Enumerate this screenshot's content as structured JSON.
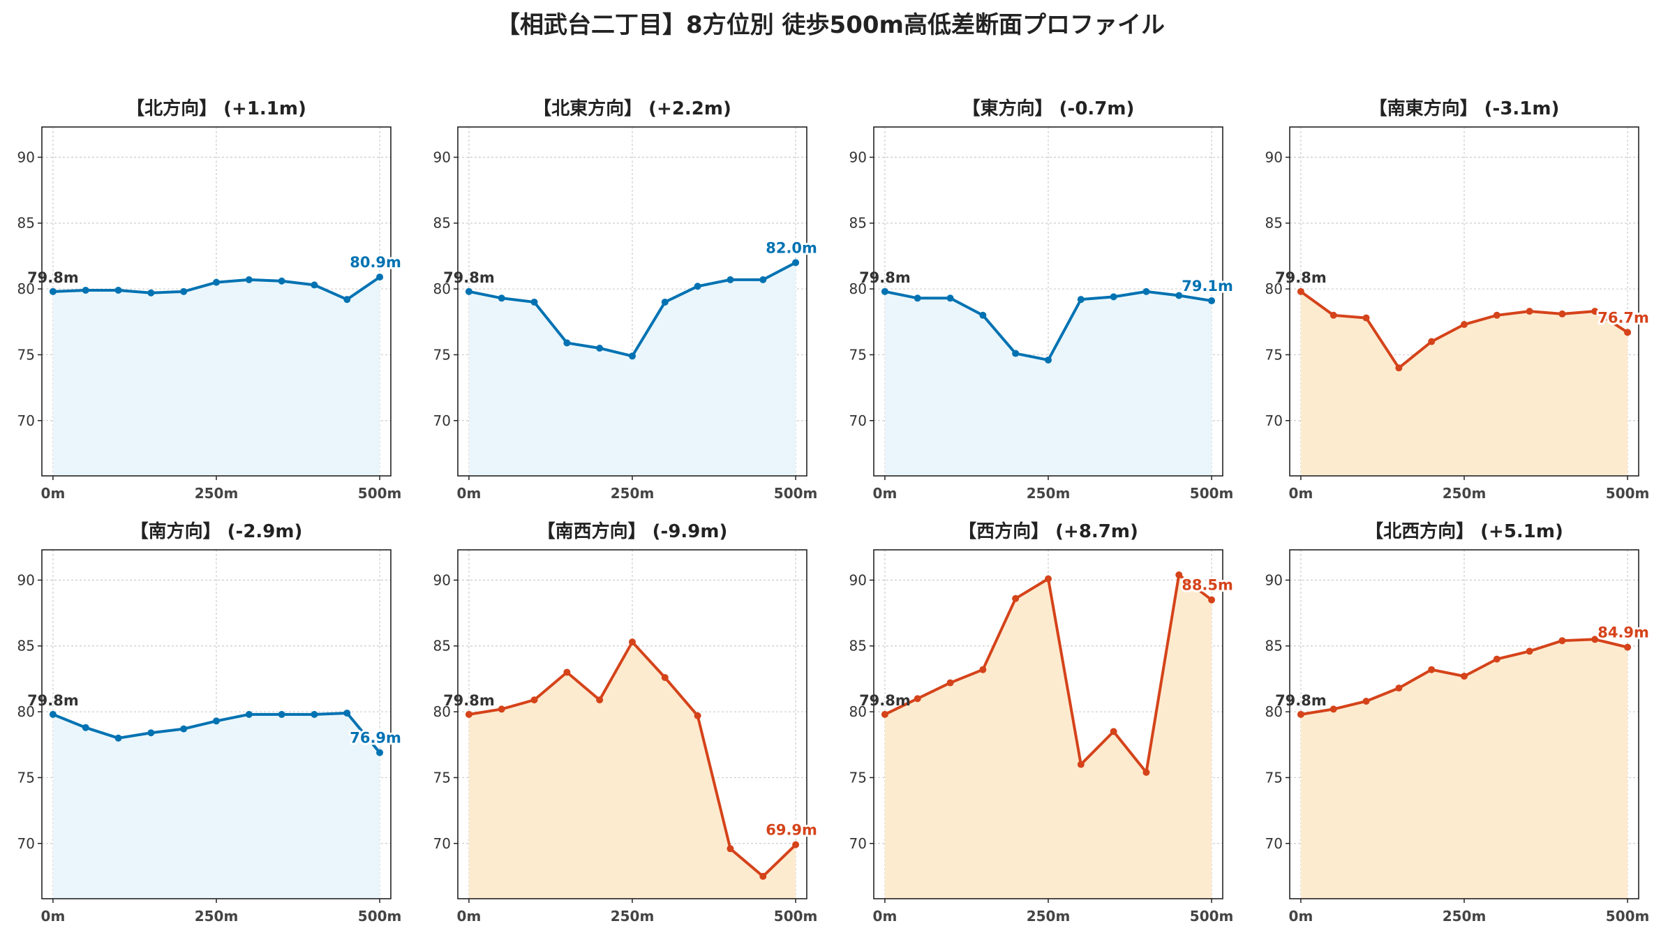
{
  "title": "【相武台二丁目】8方位別 徒歩500m高低差断面プロファイル",
  "colors": {
    "up": "#0072b2",
    "upFill": "#eaf6fb",
    "down": "#d5431a",
    "downFill": "#fdebd0",
    "grid": "#cccccc",
    "axis": "#222222"
  },
  "chart_data": [
    {
      "type": "line",
      "title": "【北方向】 (+1.1m)",
      "trend": "up",
      "x": [
        0,
        50,
        100,
        150,
        200,
        250,
        300,
        350,
        400,
        450,
        500
      ],
      "values": [
        79.8,
        79.9,
        79.9,
        79.7,
        79.8,
        80.5,
        80.7,
        80.6,
        80.3,
        79.2,
        80.9
      ],
      "start_label": "79.8m",
      "end_label": "80.9m",
      "xticks": [
        "0m",
        "250m",
        "500m"
      ],
      "xtick_values": [
        0,
        250,
        500
      ],
      "yticks": [
        "70",
        "75",
        "80",
        "85",
        "90"
      ],
      "ylim": [
        65.8,
        92.3
      ],
      "xlim": [
        -17,
        517
      ],
      "grid": true
    },
    {
      "type": "line",
      "title": "【北東方向】 (+2.2m)",
      "trend": "up",
      "x": [
        0,
        50,
        100,
        150,
        200,
        250,
        300,
        350,
        400,
        450,
        500
      ],
      "values": [
        79.8,
        79.3,
        79.0,
        75.9,
        75.5,
        74.9,
        79.0,
        80.2,
        80.7,
        80.7,
        82.0
      ],
      "start_label": "79.8m",
      "end_label": "82.0m",
      "xticks": [
        "0m",
        "250m",
        "500m"
      ],
      "xtick_values": [
        0,
        250,
        500
      ],
      "yticks": [
        "70",
        "75",
        "80",
        "85",
        "90"
      ],
      "ylim": [
        65.8,
        92.3
      ],
      "xlim": [
        -17,
        517
      ],
      "grid": true
    },
    {
      "type": "line",
      "title": "【東方向】 (-0.7m)",
      "trend": "up",
      "x": [
        0,
        50,
        100,
        150,
        200,
        250,
        300,
        350,
        400,
        450,
        500
      ],
      "values": [
        79.8,
        79.3,
        79.3,
        78.0,
        75.1,
        74.6,
        79.2,
        79.4,
        79.8,
        79.5,
        79.1
      ],
      "start_label": "79.8m",
      "end_label": "79.1m",
      "xticks": [
        "0m",
        "250m",
        "500m"
      ],
      "xtick_values": [
        0,
        250,
        500
      ],
      "yticks": [
        "70",
        "75",
        "80",
        "85",
        "90"
      ],
      "ylim": [
        65.8,
        92.3
      ],
      "xlim": [
        -17,
        517
      ],
      "grid": true
    },
    {
      "type": "line",
      "title": "【南東方向】 (-3.1m)",
      "trend": "down",
      "x": [
        0,
        50,
        100,
        150,
        200,
        250,
        300,
        350,
        400,
        450,
        500
      ],
      "values": [
        79.8,
        78.0,
        77.8,
        74.0,
        76.0,
        77.3,
        78.0,
        78.3,
        78.1,
        78.3,
        76.7
      ],
      "start_label": "79.8m",
      "end_label": "76.7m",
      "xticks": [
        "0m",
        "250m",
        "500m"
      ],
      "xtick_values": [
        0,
        250,
        500
      ],
      "yticks": [
        "70",
        "75",
        "80",
        "85",
        "90"
      ],
      "ylim": [
        65.8,
        92.3
      ],
      "xlim": [
        -17,
        517
      ],
      "grid": true
    },
    {
      "type": "line",
      "title": "【南方向】 (-2.9m)",
      "trend": "up",
      "x": [
        0,
        50,
        100,
        150,
        200,
        250,
        300,
        350,
        400,
        450,
        500
      ],
      "values": [
        79.8,
        78.8,
        78.0,
        78.4,
        78.7,
        79.3,
        79.8,
        79.8,
        79.8,
        79.9,
        76.9
      ],
      "start_label": "79.8m",
      "end_label": "76.9m",
      "xticks": [
        "0m",
        "250m",
        "500m"
      ],
      "xtick_values": [
        0,
        250,
        500
      ],
      "yticks": [
        "70",
        "75",
        "80",
        "85",
        "90"
      ],
      "ylim": [
        65.8,
        92.3
      ],
      "xlim": [
        -17,
        517
      ],
      "grid": true
    },
    {
      "type": "line",
      "title": "【南西方向】 (-9.9m)",
      "trend": "down",
      "x": [
        0,
        50,
        100,
        150,
        200,
        250,
        300,
        350,
        400,
        450,
        500
      ],
      "values": [
        79.8,
        80.2,
        80.9,
        83.0,
        80.9,
        85.3,
        82.6,
        79.7,
        69.6,
        67.5,
        69.9
      ],
      "start_label": "79.8m",
      "end_label": "69.9m",
      "xticks": [
        "0m",
        "250m",
        "500m"
      ],
      "xtick_values": [
        0,
        250,
        500
      ],
      "yticks": [
        "70",
        "75",
        "80",
        "85",
        "90"
      ],
      "ylim": [
        65.8,
        92.3
      ],
      "xlim": [
        -17,
        517
      ],
      "grid": true
    },
    {
      "type": "line",
      "title": "【西方向】 (+8.7m)",
      "trend": "down",
      "x": [
        0,
        50,
        100,
        150,
        200,
        250,
        300,
        350,
        400,
        450,
        500
      ],
      "values": [
        79.8,
        81.0,
        82.2,
        83.2,
        88.6,
        90.1,
        76.0,
        78.5,
        75.4,
        90.4,
        88.5
      ],
      "start_label": "79.8m",
      "end_label": "88.5m",
      "xticks": [
        "0m",
        "250m",
        "500m"
      ],
      "xtick_values": [
        0,
        250,
        500
      ],
      "yticks": [
        "70",
        "75",
        "80",
        "85",
        "90"
      ],
      "ylim": [
        65.8,
        92.3
      ],
      "xlim": [
        -17,
        517
      ],
      "grid": true
    },
    {
      "type": "line",
      "title": "【北西方向】 (+5.1m)",
      "trend": "down",
      "x": [
        0,
        50,
        100,
        150,
        200,
        250,
        300,
        350,
        400,
        450,
        500
      ],
      "values": [
        79.8,
        80.2,
        80.8,
        81.8,
        83.2,
        82.7,
        84.0,
        84.6,
        85.4,
        85.5,
        84.9
      ],
      "start_label": "79.8m",
      "end_label": "84.9m",
      "xticks": [
        "0m",
        "250m",
        "500m"
      ],
      "xtick_values": [
        0,
        250,
        500
      ],
      "yticks": [
        "70",
        "75",
        "80",
        "85",
        "90"
      ],
      "ylim": [
        65.8,
        92.3
      ],
      "xlim": [
        -17,
        517
      ],
      "grid": true
    }
  ]
}
